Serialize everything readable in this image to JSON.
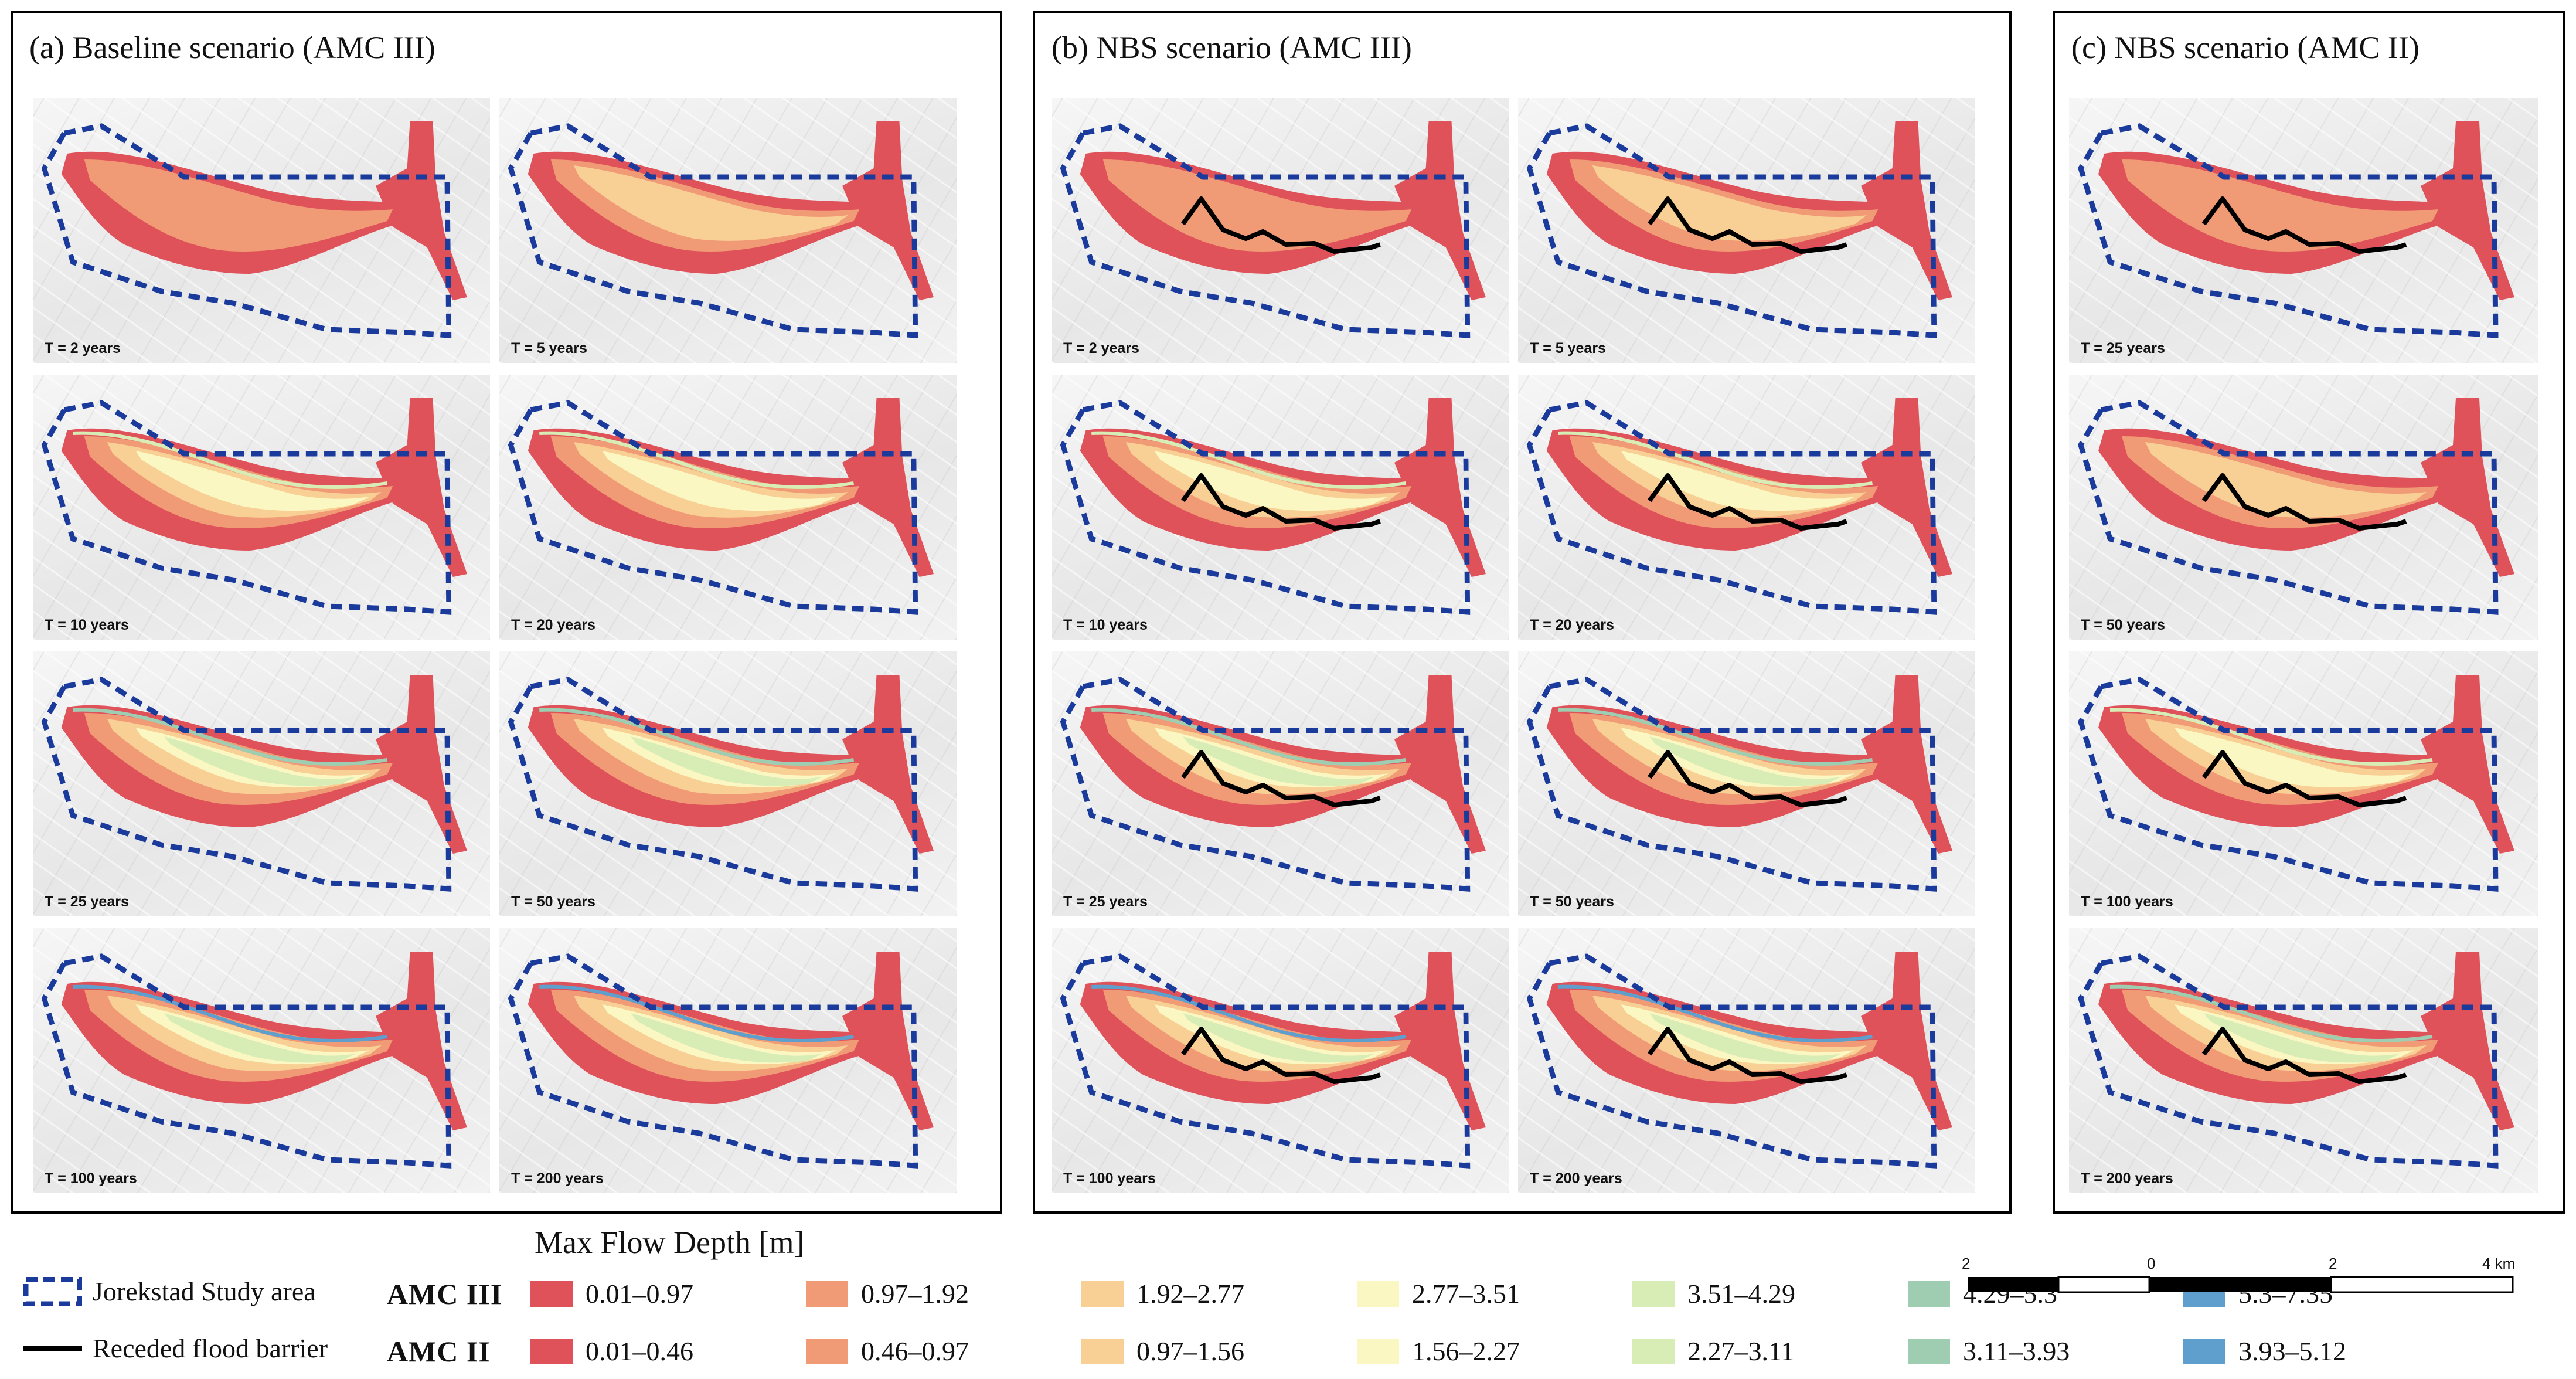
{
  "panels": [
    {
      "id": "a",
      "title": "(a) Baseline scenario (AMC III)",
      "maps": [
        {
          "label": "T = 2 years",
          "level": 0
        },
        {
          "label": "T = 5 years",
          "level": 1
        },
        {
          "label": "T = 10 years",
          "level": 2
        },
        {
          "label": "T = 20 years",
          "level": 2
        },
        {
          "label": "T = 25 years",
          "level": 3
        },
        {
          "label": "T = 50 years",
          "level": 3
        },
        {
          "label": "T = 100 years",
          "level": 4
        },
        {
          "label": "T = 200 years",
          "level": 4
        }
      ]
    },
    {
      "id": "b",
      "title": "(b) NBS scenario (AMC III)",
      "maps": [
        {
          "label": "T = 2 years",
          "level": 0
        },
        {
          "label": "T = 5 years",
          "level": 1
        },
        {
          "label": "T = 10 years",
          "level": 2
        },
        {
          "label": "T = 20 years",
          "level": 2
        },
        {
          "label": "T = 25 years",
          "level": 3
        },
        {
          "label": "T = 50 years",
          "level": 3
        },
        {
          "label": "T = 100 years",
          "level": 4
        },
        {
          "label": "T = 200 years",
          "level": 4
        }
      ]
    },
    {
      "id": "c",
      "title": "(c) NBS scenario (AMC II)",
      "maps": [
        {
          "label": "T = 25 years",
          "level": 0
        },
        {
          "label": "T = 50 years",
          "level": 1
        },
        {
          "label": "T = 100 years",
          "level": 2
        },
        {
          "label": "T = 200 years",
          "level": 3
        }
      ]
    }
  ],
  "legend": {
    "title": "Max Flow Depth [m]",
    "study_area": "Jorekstad Study area",
    "barrier": "Receded flood barrier",
    "amc3": {
      "label": "AMC III",
      "classes": [
        "0.01–0.97",
        "0.97–1.92",
        "1.92–2.77",
        "2.77–3.51",
        "3.51–4.29",
        "4.29–5.3",
        "5.3–7.35"
      ]
    },
    "amc2": {
      "label": "AMC II",
      "classes": [
        "0.01–0.46",
        "0.46–0.97",
        "0.97–1.56",
        "1.56–2.27",
        "2.27–3.11",
        "3.11–3.93",
        "3.93–5.12"
      ]
    },
    "colors": [
      "#e0525a",
      "#f19a76",
      "#f8cf94",
      "#fbf7c2",
      "#d8ecb6",
      "#9ecdb2",
      "#5f9fcd"
    ]
  },
  "scale_bar": {
    "ticks": [
      "2",
      "0",
      "2",
      "4 km"
    ]
  }
}
